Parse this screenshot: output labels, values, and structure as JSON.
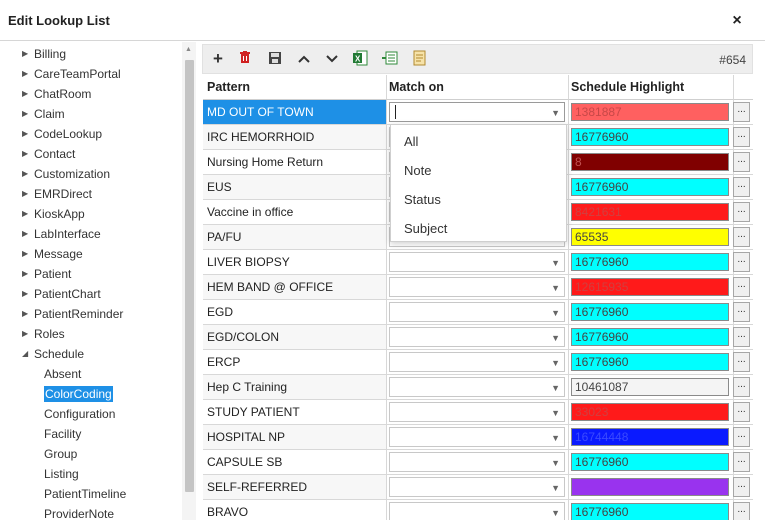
{
  "dialog": {
    "title": "Edit Lookup List",
    "close_glyph": "×"
  },
  "tree": {
    "items": [
      {
        "label": "Billing",
        "expanded": false
      },
      {
        "label": "CareTeamPortal",
        "expanded": false
      },
      {
        "label": "ChatRoom",
        "expanded": false
      },
      {
        "label": "Claim",
        "expanded": false
      },
      {
        "label": "CodeLookup",
        "expanded": false
      },
      {
        "label": "Contact",
        "expanded": false
      },
      {
        "label": "Customization",
        "expanded": false
      },
      {
        "label": "EMRDirect",
        "expanded": false
      },
      {
        "label": "KioskApp",
        "expanded": false
      },
      {
        "label": "LabInterface",
        "expanded": false
      },
      {
        "label": "Message",
        "expanded": false
      },
      {
        "label": "Patient",
        "expanded": false
      },
      {
        "label": "PatientChart",
        "expanded": false
      },
      {
        "label": "PatientReminder",
        "expanded": false
      },
      {
        "label": "Roles",
        "expanded": false
      },
      {
        "label": "Schedule",
        "expanded": true
      }
    ],
    "children": [
      "Absent",
      "ColorCoding",
      "Configuration",
      "Facility",
      "Group",
      "Listing",
      "PatientTimeline",
      "ProviderNote"
    ],
    "selected_child": "ColorCoding"
  },
  "toolbar": {
    "icons": [
      "add-icon",
      "delete-icon",
      "save-icon",
      "move-up-icon",
      "move-down-icon",
      "export-excel-icon",
      "import-icon",
      "notes-icon"
    ],
    "record_count": "#654"
  },
  "grid": {
    "headers": {
      "pattern": "Pattern",
      "match_on": "Match on",
      "highlight": "Schedule Highlight"
    },
    "rows": [
      {
        "pattern": "MD OUT OF TOWN",
        "highlight_value": "1381887",
        "color": "#ff6060",
        "text_color": "#c84848"
      },
      {
        "pattern": "IRC HEMORRHOID",
        "highlight_value": "16776960",
        "color": "#00ffff",
        "text_color": "#444444"
      },
      {
        "pattern": "Nursing Home Return",
        "highlight_value": "8",
        "color": "#800000",
        "text_color": "#c05050"
      },
      {
        "pattern": "EUS",
        "highlight_value": "16776960",
        "color": "#00ffff",
        "text_color": "#444444"
      },
      {
        "pattern": "Vaccine in office",
        "highlight_value": "8421631",
        "color": "#ff1a1a",
        "text_color": "#d04040"
      },
      {
        "pattern": "PA/FU",
        "highlight_value": "65535",
        "color": "#ffff00",
        "text_color": "#444444"
      },
      {
        "pattern": "LIVER BIOPSY",
        "highlight_value": "16776960",
        "color": "#00ffff",
        "text_color": "#444444"
      },
      {
        "pattern": "HEM BAND @ OFFICE",
        "highlight_value": "12615935",
        "color": "#ff1a1a",
        "text_color": "#d04040"
      },
      {
        "pattern": "EGD",
        "highlight_value": "16776960",
        "color": "#00ffff",
        "text_color": "#444444"
      },
      {
        "pattern": "EGD/COLON",
        "highlight_value": "16776960",
        "color": "#00ffff",
        "text_color": "#444444"
      },
      {
        "pattern": "ERCP",
        "highlight_value": "16776960",
        "color": "#00ffff",
        "text_color": "#444444"
      },
      {
        "pattern": "Hep C Training",
        "highlight_value": "10461087",
        "color": "#f4f4f4",
        "text_color": "#444444"
      },
      {
        "pattern": "STUDY PATIENT",
        "highlight_value": "33023",
        "color": "#ff1a1a",
        "text_color": "#d04040"
      },
      {
        "pattern": "HOSPITAL NP",
        "highlight_value": "16744448",
        "color": "#0a1aff",
        "text_color": "#3a4aff"
      },
      {
        "pattern": "CAPSULE SB",
        "highlight_value": "16776960",
        "color": "#00ffff",
        "text_color": "#444444"
      },
      {
        "pattern": "SELF-REFERRED",
        "highlight_value": "",
        "color": "#9933ee",
        "text_color": "#9933ee"
      },
      {
        "pattern": "BRAVO",
        "highlight_value": "16776960",
        "color": "#00ffff",
        "text_color": "#444444"
      }
    ],
    "selected_row": 0,
    "dots_label": "..."
  },
  "match_dropdown": {
    "options": [
      "All",
      "Note",
      "Status",
      "Subject"
    ]
  }
}
